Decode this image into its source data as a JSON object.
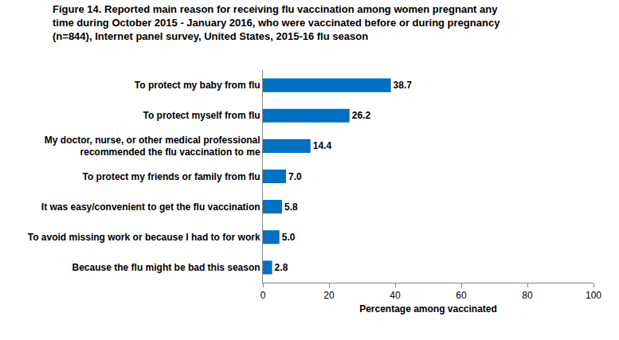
{
  "chart_data": {
    "type": "bar",
    "orientation": "horizontal",
    "title": "Figure 14. Reported main reason for receiving flu vaccination among women pregnant any\ntime during October 2015 - January 2016, who were vaccinated before or during pregnancy\n(n=844), Internet panel survey, United States, 2015-16 flu season",
    "x_label": "Percentage among vaccinated",
    "categories": [
      "To protect my baby from flu",
      "To protect myself from flu",
      "My doctor, nurse, or other medical professional\nrecommended the flu vaccination to me",
      "To protect my friends or family from flu",
      "It was easy/convenient to get the flu vaccination",
      "To avoid missing work or because I had to for work",
      "Because the flu might be bad this season"
    ],
    "values": [
      38.7,
      26.2,
      14.4,
      7.0,
      5.8,
      5.0,
      2.8
    ],
    "value_labels": [
      "38.7",
      "26.2",
      "14.4",
      "7.0",
      "5.8",
      "5.0",
      "2.8"
    ],
    "color": "#0070C0",
    "xlim": [
      0,
      100
    ],
    "xticks": [
      0,
      20,
      40,
      60,
      80,
      100
    ],
    "grid": false,
    "data_labels": true
  }
}
